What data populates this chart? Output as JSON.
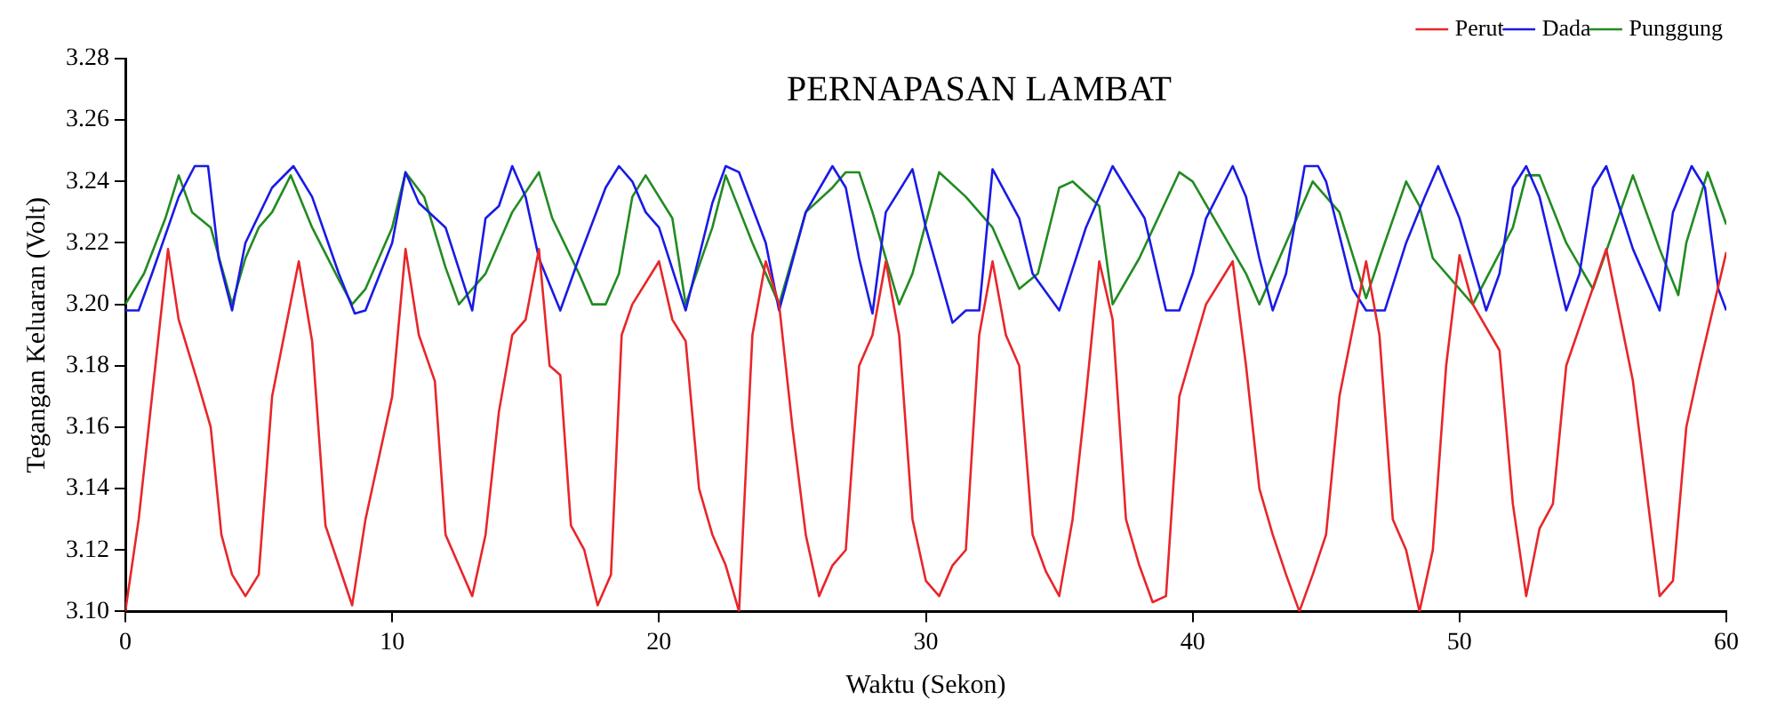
{
  "chart_data": {
    "type": "line",
    "title": "PERNAPASAN LAMBAT",
    "xlabel": "Waktu (Sekon)",
    "ylabel": "Tegangan Keluaran (Volt)",
    "xlim": [
      0,
      60
    ],
    "xticks": [
      0,
      10,
      20,
      30,
      40,
      50,
      60
    ],
    "ylim": [
      3.1,
      3.28
    ],
    "yticks": [
      {
        "value": 3.1,
        "label": "3.10"
      },
      3.12,
      3.14,
      3.16,
      3.18,
      {
        "value": 3.2,
        "label": "3.20"
      },
      3.22,
      3.24,
      3.26,
      3.28
    ],
    "grid": false,
    "legend": "top right",
    "marker": "none",
    "line_style": "solid",
    "series": [
      {
        "name": "Perut",
        "color": "#e8262a",
        "x": [
          0,
          0.5,
          1.6,
          2,
          2.7,
          3.2,
          3.6,
          4,
          4.5,
          5,
          5.5,
          6.5,
          7,
          7.5,
          8,
          8.5,
          9,
          10,
          10.5,
          11,
          11.6,
          12,
          12.5,
          13,
          13.5,
          14,
          14.5,
          15,
          15.5,
          15.9,
          16.3,
          16.7,
          17.2,
          17.7,
          18.2,
          18.6,
          19,
          20,
          20.5,
          21,
          21.5,
          22,
          22.5,
          23,
          23.5,
          24,
          24.5,
          25,
          25.5,
          26,
          26.5,
          27,
          27.5,
          28,
          28.5,
          29,
          29.5,
          30,
          30.5,
          31,
          31.5,
          32,
          32.5,
          33,
          33.5,
          34,
          34.5,
          35,
          35.5,
          36,
          36.5,
          37,
          37.5,
          38,
          38.5,
          39,
          39.5,
          40,
          40.5,
          41.5,
          42,
          42.5,
          43,
          43.5,
          44,
          44.5,
          45,
          45.5,
          46.5,
          47,
          47.5,
          48,
          48.5,
          49,
          49.5,
          50,
          50.5,
          51.5,
          52,
          52.5,
          53,
          53.5,
          54,
          55.5,
          56.5,
          57,
          57.5,
          58,
          58.5,
          59,
          60
        ],
        "values": [
          3.1,
          3.13,
          3.218,
          3.195,
          3.175,
          3.16,
          3.125,
          3.112,
          3.105,
          3.112,
          3.17,
          3.214,
          3.188,
          3.128,
          3.115,
          3.102,
          3.13,
          3.17,
          3.218,
          3.19,
          3.175,
          3.125,
          3.115,
          3.105,
          3.125,
          3.165,
          3.19,
          3.195,
          3.218,
          3.18,
          3.177,
          3.128,
          3.12,
          3.102,
          3.112,
          3.19,
          3.2,
          3.214,
          3.195,
          3.188,
          3.14,
          3.125,
          3.115,
          3.1,
          3.19,
          3.214,
          3.2,
          3.16,
          3.125,
          3.105,
          3.115,
          3.12,
          3.18,
          3.19,
          3.214,
          3.19,
          3.13,
          3.11,
          3.105,
          3.115,
          3.12,
          3.19,
          3.214,
          3.19,
          3.18,
          3.125,
          3.113,
          3.105,
          3.13,
          3.17,
          3.214,
          3.195,
          3.13,
          3.115,
          3.103,
          3.105,
          3.17,
          3.185,
          3.2,
          3.214,
          3.18,
          3.14,
          3.125,
          3.112,
          3.1,
          3.112,
          3.125,
          3.17,
          3.214,
          3.19,
          3.13,
          3.12,
          3.1,
          3.12,
          3.18,
          3.216,
          3.2,
          3.185,
          3.135,
          3.105,
          3.127,
          3.135,
          3.18,
          3.218,
          3.175,
          3.14,
          3.105,
          3.11,
          3.16,
          3.18,
          3.217
        ]
      },
      {
        "name": "Dada",
        "color": "#1a1ae6",
        "x": [
          0,
          0.5,
          1,
          2,
          2.6,
          3.1,
          3.5,
          4,
          4.5,
          5.5,
          6.3,
          7,
          8,
          8.6,
          9,
          10,
          10.5,
          11,
          12,
          13,
          13.5,
          14,
          14.5,
          15,
          15.5,
          16.3,
          17,
          18,
          18.5,
          19,
          19.5,
          20,
          21,
          22,
          22.5,
          23,
          24,
          24.5,
          25.5,
          26.5,
          27,
          27.5,
          28,
          28.5,
          29.5,
          30,
          31,
          31.5,
          32,
          32.5,
          33.5,
          34,
          35,
          36,
          37,
          38.2,
          39,
          39.5,
          40,
          40.5,
          41.5,
          42,
          42.5,
          43,
          43.5,
          44.2,
          44.7,
          45,
          46,
          46.5,
          47.2,
          48,
          48.7,
          49.2,
          50,
          51,
          51.5,
          52,
          52.5,
          53,
          54,
          54.5,
          55,
          55.5,
          56.5,
          57.5,
          58,
          58.7,
          59.2,
          59.7,
          60
        ],
        "values": [
          3.198,
          3.198,
          3.21,
          3.235,
          3.245,
          3.245,
          3.215,
          3.198,
          3.22,
          3.238,
          3.245,
          3.235,
          3.21,
          3.197,
          3.198,
          3.22,
          3.243,
          3.233,
          3.225,
          3.198,
          3.228,
          3.232,
          3.245,
          3.235,
          3.215,
          3.198,
          3.215,
          3.238,
          3.245,
          3.24,
          3.23,
          3.225,
          3.198,
          3.233,
          3.245,
          3.243,
          3.22,
          3.198,
          3.23,
          3.245,
          3.238,
          3.215,
          3.197,
          3.23,
          3.244,
          3.225,
          3.194,
          3.198,
          3.198,
          3.244,
          3.228,
          3.21,
          3.198,
          3.225,
          3.245,
          3.228,
          3.198,
          3.198,
          3.21,
          3.228,
          3.245,
          3.235,
          3.215,
          3.198,
          3.21,
          3.245,
          3.245,
          3.24,
          3.205,
          3.198,
          3.198,
          3.22,
          3.235,
          3.245,
          3.228,
          3.198,
          3.21,
          3.238,
          3.245,
          3.235,
          3.198,
          3.21,
          3.238,
          3.245,
          3.218,
          3.198,
          3.23,
          3.245,
          3.238,
          3.205,
          3.198
        ]
      },
      {
        "name": "Punggung",
        "color": "#228b22",
        "x": [
          0,
          0.7,
          1.5,
          2,
          2.5,
          3.2,
          4,
          4.5,
          5,
          5.5,
          6.2,
          7,
          8,
          8.5,
          9,
          10,
          10.5,
          11.2,
          12,
          12.5,
          13.5,
          14.5,
          15.5,
          16,
          17,
          17.5,
          18,
          18.5,
          19,
          19.5,
          20.5,
          21,
          22,
          22.5,
          23.5,
          24.5,
          25.5,
          26.5,
          27,
          27.5,
          28,
          29,
          29.5,
          30.5,
          31.5,
          32.5,
          33.5,
          34.2,
          35,
          35.5,
          36.5,
          37,
          38,
          39.5,
          40,
          41,
          42,
          42.5,
          43.5,
          44.5,
          45,
          45.5,
          46.5,
          47,
          48,
          48.5,
          49,
          50.5,
          52,
          52.5,
          53,
          54,
          55,
          56.5,
          57.5,
          58.2,
          58.5,
          59.3,
          60
        ],
        "values": [
          3.2,
          3.21,
          3.228,
          3.242,
          3.23,
          3.225,
          3.2,
          3.215,
          3.225,
          3.23,
          3.242,
          3.225,
          3.208,
          3.2,
          3.205,
          3.225,
          3.243,
          3.235,
          3.212,
          3.2,
          3.21,
          3.23,
          3.243,
          3.228,
          3.21,
          3.2,
          3.2,
          3.21,
          3.235,
          3.242,
          3.228,
          3.2,
          3.225,
          3.242,
          3.22,
          3.2,
          3.23,
          3.238,
          3.243,
          3.243,
          3.23,
          3.2,
          3.21,
          3.243,
          3.235,
          3.225,
          3.205,
          3.21,
          3.238,
          3.24,
          3.232,
          3.2,
          3.215,
          3.243,
          3.24,
          3.225,
          3.21,
          3.2,
          3.22,
          3.24,
          3.235,
          3.23,
          3.202,
          3.215,
          3.24,
          3.232,
          3.215,
          3.2,
          3.225,
          3.242,
          3.242,
          3.22,
          3.205,
          3.242,
          3.218,
          3.203,
          3.22,
          3.243,
          3.226
        ]
      }
    ]
  }
}
